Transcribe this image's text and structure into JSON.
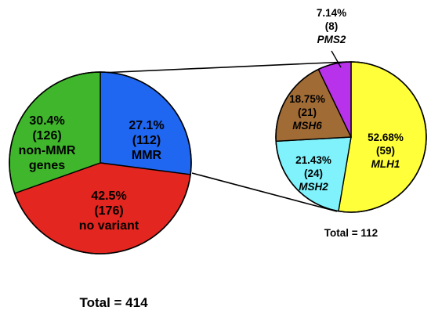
{
  "chart_data": [
    {
      "type": "pie",
      "total_label": "Total = 414",
      "slices": [
        {
          "name": "MMR",
          "value": 112,
          "percent_label": "27.1%",
          "count_label": "(112)",
          "label_lines": [
            "MMR"
          ],
          "color": "#1f66f0"
        },
        {
          "name": "no variant",
          "value": 176,
          "percent_label": "42.5%",
          "count_label": "(176)",
          "label_lines": [
            "no variant"
          ],
          "color": "#e3261f"
        },
        {
          "name": "non-MMR genes",
          "value": 126,
          "percent_label": "30.4%",
          "count_label": "(126)",
          "label_lines": [
            "non-MMR",
            "genes"
          ],
          "color": "#3fb62b"
        }
      ]
    },
    {
      "type": "pie",
      "total_label": "Total = 112",
      "slices": [
        {
          "name": "MLH1",
          "value": 59,
          "percent_label": "52.68%",
          "count_label": "(59)",
          "label_lines": [
            "MLH1"
          ],
          "color": "#ffff3a"
        },
        {
          "name": "MSH2",
          "value": 24,
          "percent_label": "21.43%",
          "count_label": "(24)",
          "label_lines": [
            "MSH2"
          ],
          "color": "#7ff2fb"
        },
        {
          "name": "MSH6",
          "value": 21,
          "percent_label": "18.75%",
          "count_label": "(21)",
          "label_lines": [
            "MSH6"
          ],
          "color": "#a16b35"
        },
        {
          "name": "PMS2",
          "value": 8,
          "percent_label": "7.14%",
          "count_label": "(8)",
          "label_lines": [
            "PMS2"
          ],
          "color": "#b732ea"
        }
      ]
    }
  ]
}
